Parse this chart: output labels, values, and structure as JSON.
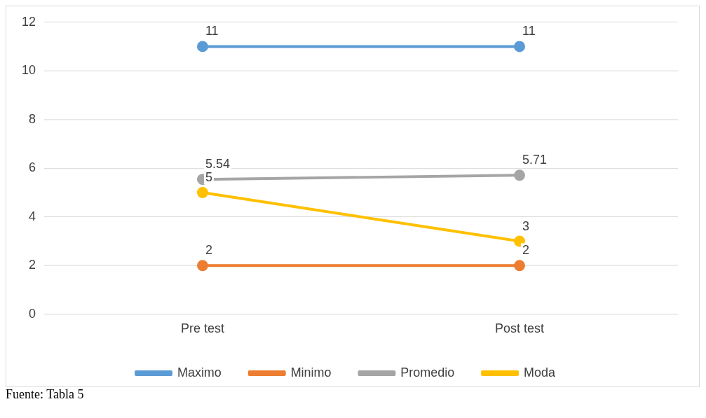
{
  "chart_data": {
    "type": "line",
    "categories": [
      "Pre test",
      "Post test"
    ],
    "series": [
      {
        "name": "Maximo",
        "color": "#5b9bd5",
        "values": [
          11,
          11
        ]
      },
      {
        "name": "Minimo",
        "color": "#ed7d31",
        "values": [
          2,
          2
        ]
      },
      {
        "name": "Promedio",
        "color": "#a5a5a5",
        "values": [
          5.54,
          5.71
        ]
      },
      {
        "name": "Moda",
        "color": "#ffc000",
        "values": [
          5,
          3
        ]
      }
    ],
    "ylim": [
      0,
      12
    ],
    "yticks": [
      0,
      2,
      4,
      6,
      8,
      10,
      12
    ],
    "grid": "y",
    "legend": "bottom",
    "marker": "circle",
    "line_style": "solid",
    "data_labels": true,
    "annotations": [
      "Fuente: Tabla 5"
    ]
  }
}
